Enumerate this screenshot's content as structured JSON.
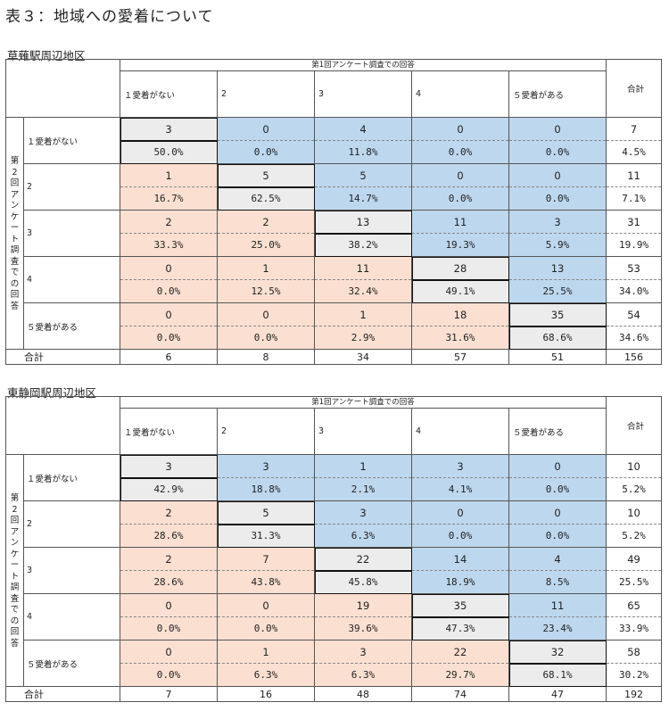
{
  "title": "表３：地域への愛着について",
  "super_header": "第1回アンケート調査での回答",
  "side_label": "第2回アンケート調査での回答",
  "columns": [
    "１愛着がない",
    "2",
    "3",
    "4",
    "５愛着がある",
    "合計"
  ],
  "rows_labels": [
    "１愛着がない",
    "2",
    "3",
    "4",
    "５愛着がある"
  ],
  "sum_label": "合計",
  "tables": [
    {
      "name": "草薙駅周辺地区",
      "rows": [
        {
          "counts": [
            "3",
            "0",
            "4",
            "0",
            "0"
          ],
          "total": "7",
          "pcts": [
            "50.0%",
            "0.0%",
            "11.8%",
            "0.0%",
            "0.0%"
          ],
          "total_pct": "4.5%"
        },
        {
          "counts": [
            "1",
            "5",
            "5",
            "0",
            "0"
          ],
          "total": "11",
          "pcts": [
            "16.7%",
            "62.5%",
            "14.7%",
            "0.0%",
            "0.0%"
          ],
          "total_pct": "7.1%"
        },
        {
          "counts": [
            "2",
            "2",
            "13",
            "11",
            "3"
          ],
          "total": "31",
          "pcts": [
            "33.3%",
            "25.0%",
            "38.2%",
            "19.3%",
            "5.9%"
          ],
          "total_pct": "19.9%"
        },
        {
          "counts": [
            "0",
            "1",
            "11",
            "28",
            "13"
          ],
          "total": "53",
          "pcts": [
            "0.0%",
            "12.5%",
            "32.4%",
            "49.1%",
            "25.5%"
          ],
          "total_pct": "34.0%"
        },
        {
          "counts": [
            "0",
            "0",
            "1",
            "18",
            "35"
          ],
          "total": "54",
          "pcts": [
            "0.0%",
            "0.0%",
            "2.9%",
            "31.6%",
            "68.6%"
          ],
          "total_pct": "34.6%"
        }
      ],
      "sums": [
        "6",
        "8",
        "34",
        "57",
        "51",
        "156"
      ]
    },
    {
      "name": "東静岡駅周辺地区",
      "rows": [
        {
          "counts": [
            "3",
            "3",
            "1",
            "3",
            "0"
          ],
          "total": "10",
          "pcts": [
            "42.9%",
            "18.8%",
            "2.1%",
            "4.1%",
            "0.0%"
          ],
          "total_pct": "5.2%"
        },
        {
          "counts": [
            "2",
            "5",
            "3",
            "0",
            "0"
          ],
          "total": "10",
          "pcts": [
            "28.6%",
            "31.3%",
            "6.3%",
            "0.0%",
            "0.0%"
          ],
          "total_pct": "5.2%"
        },
        {
          "counts": [
            "2",
            "7",
            "22",
            "14",
            "4"
          ],
          "total": "49",
          "pcts": [
            "28.6%",
            "43.8%",
            "45.8%",
            "18.9%",
            "8.5%"
          ],
          "total_pct": "25.5%"
        },
        {
          "counts": [
            "0",
            "0",
            "19",
            "35",
            "11"
          ],
          "total": "65",
          "pcts": [
            "0.0%",
            "0.0%",
            "39.6%",
            "47.3%",
            "23.4%"
          ],
          "total_pct": "33.9%"
        },
        {
          "counts": [
            "0",
            "1",
            "3",
            "22",
            "32"
          ],
          "total": "58",
          "pcts": [
            "0.0%",
            "6.3%",
            "6.3%",
            "29.7%",
            "68.1%"
          ],
          "total_pct": "30.2%"
        }
      ],
      "sums": [
        "7",
        "16",
        "48",
        "74",
        "47",
        "192"
      ]
    }
  ],
  "colors": {
    "diagonal": "#ececec",
    "upper": "#bdd7ee",
    "lower": "#fbe0d2"
  }
}
